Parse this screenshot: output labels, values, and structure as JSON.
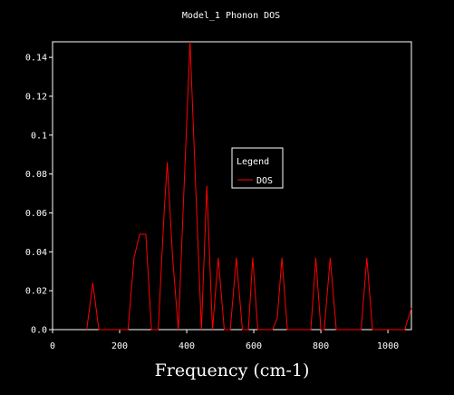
{
  "chart_data": {
    "type": "line",
    "title": "Model_1 Phonon DOS",
    "xlabel": "Frequency (cm-1)",
    "ylabel": "",
    "xlim": [
      0,
      1070
    ],
    "ylim": [
      0,
      0.148
    ],
    "x_ticks": [
      0,
      200,
      400,
      600,
      800,
      1000
    ],
    "y_ticks": [
      0.0,
      0.02,
      0.04,
      0.06,
      0.08,
      0.1,
      0.12,
      0.14
    ],
    "y_tick_labels": [
      "0.0",
      "0.02",
      "0.04",
      "0.06",
      "0.08",
      "0.1",
      "0.12",
      "0.14"
    ],
    "grid": false,
    "legend": {
      "title": "Legend",
      "entries": [
        "DOS"
      ],
      "placement": "center-right"
    },
    "series": [
      {
        "name": "DOS",
        "color": "#ff0000",
        "points": [
          [
            102,
            0
          ],
          [
            120,
            0.024
          ],
          [
            138,
            0
          ],
          [
            225,
            0
          ],
          [
            243,
            0.037
          ],
          [
            260,
            0.049
          ],
          [
            278,
            0.049
          ],
          [
            295,
            0
          ],
          [
            315,
            0
          ],
          [
            333,
            0.061
          ],
          [
            342,
            0.086
          ],
          [
            358,
            0.037
          ],
          [
            375,
            0
          ],
          [
            392,
            0.073
          ],
          [
            410,
            0.148
          ],
          [
            427,
            0.073
          ],
          [
            444,
            0
          ],
          [
            460,
            0.074
          ],
          [
            477,
            0
          ],
          [
            494,
            0.037
          ],
          [
            512,
            0
          ],
          [
            530,
            0
          ],
          [
            548,
            0.037
          ],
          [
            566,
            0
          ],
          [
            584,
            0
          ],
          [
            597,
            0.037
          ],
          [
            612,
            0
          ],
          [
            656,
            0
          ],
          [
            670,
            0.006
          ],
          [
            684,
            0.037
          ],
          [
            700,
            0
          ],
          [
            770,
            0
          ],
          [
            785,
            0.037
          ],
          [
            800,
            0
          ],
          [
            810,
            0
          ],
          [
            828,
            0.037
          ],
          [
            846,
            0
          ],
          [
            920,
            0
          ],
          [
            937,
            0.037
          ],
          [
            954,
            0
          ],
          [
            1050,
            0
          ],
          [
            1070,
            0.011
          ]
        ]
      }
    ]
  }
}
